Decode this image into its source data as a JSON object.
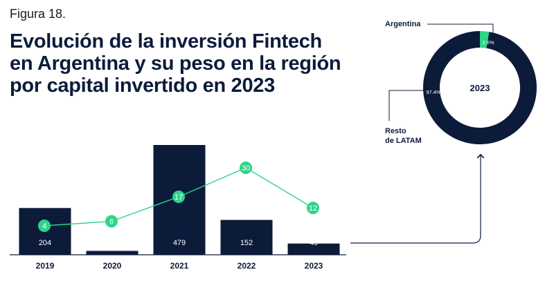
{
  "figure_label": "Figura 18.",
  "title": "Evolución de la inversión Fintech en Argentina y su peso en la región por capital invertido en 2023",
  "colors": {
    "navy": "#0c1b3a",
    "green": "#2ed48a",
    "line": "#2ed48a",
    "axis": "#0c1b3a"
  },
  "chart_data": [
    {
      "type": "bar",
      "categories": [
        "2019",
        "2020",
        "2021",
        "2022",
        "2023"
      ],
      "series": [
        {
          "values": [
            204,
            17,
            479,
            152,
            49
          ]
        },
        {
          "values": [
            4,
            6,
            17,
            30,
            12
          ]
        }
      ],
      "title": "",
      "xlabel": "",
      "ylabel": "",
      "grid": false,
      "legend": "none"
    },
    {
      "type": "pie",
      "center_label": "2023",
      "slices": [
        {
          "label": "Argentina",
          "value": 2.6,
          "value_label": "2.6%"
        },
        {
          "label": "Resto de LATAM",
          "value": 97.4,
          "value_label": "97.4%"
        }
      ]
    }
  ]
}
